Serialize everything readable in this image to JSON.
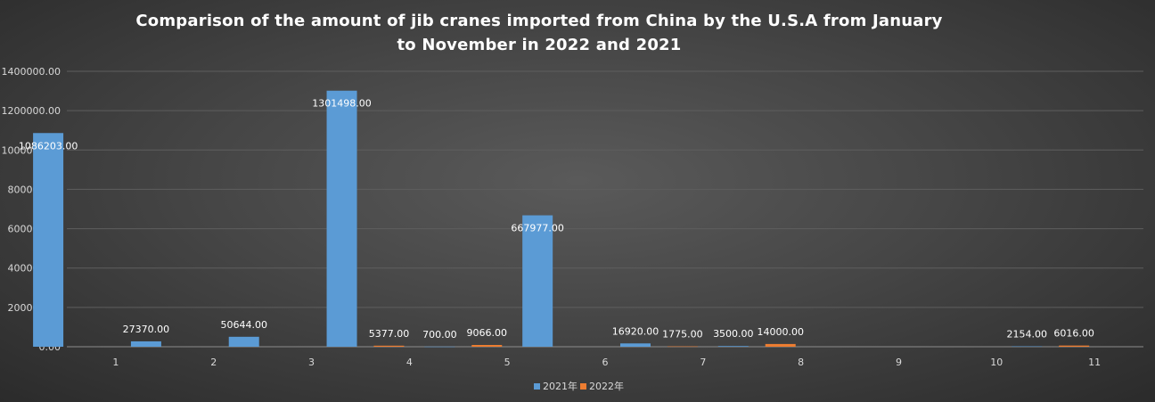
{
  "chart_data": {
    "type": "bar",
    "title": "Comparison of the amount of jib cranes imported from China by the U.S.A from January to November in 2022 and 2021",
    "xlabel": "",
    "ylabel": "",
    "categories": [
      "1",
      "2",
      "3",
      "4",
      "5",
      "6",
      "7",
      "8",
      "9",
      "10",
      "11"
    ],
    "ylim": [
      0,
      1400000
    ],
    "yticks": [
      0,
      200000,
      400000,
      600000,
      800000,
      1000000,
      1200000,
      1400000
    ],
    "ytick_labels": [
      "0.00",
      "200000.00",
      "400000.00",
      "600000.00",
      "800000.00",
      "1000000.00",
      "1200000.00",
      "1400000.00"
    ],
    "grid": true,
    "legend_position": "bottom",
    "series": [
      {
        "name": "2021年",
        "color": "#5b9bd5",
        "values": [
          1086203,
          27370,
          50644,
          1301498,
          700,
          667977,
          16920,
          3500,
          null,
          null,
          2154
        ],
        "labels": [
          "1086203.00",
          "27370.00",
          "50644.00",
          "1301498.00",
          "700.00",
          "667977.00",
          "16920.00",
          "3500.00",
          "",
          "",
          "2154.00"
        ]
      },
      {
        "name": "2022年",
        "color": "#ed7d31",
        "values": [
          null,
          null,
          null,
          5377,
          9066,
          null,
          1775,
          14000,
          null,
          null,
          6016
        ],
        "labels": [
          "",
          "",
          "",
          "5377.00",
          "9066.00",
          "",
          "1775.00",
          "14000.00",
          "",
          "",
          "6016.00"
        ]
      }
    ]
  }
}
